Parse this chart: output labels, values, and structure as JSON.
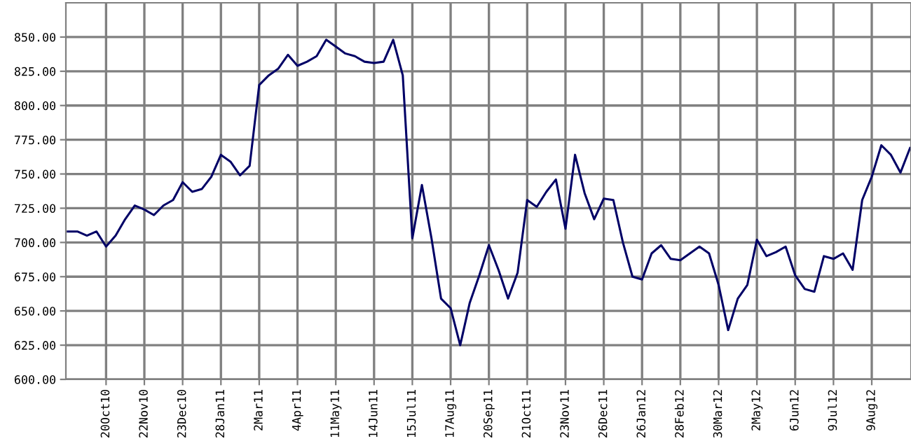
{
  "chart_data": {
    "type": "line",
    "categories": [
      null,
      null,
      null,
      null,
      "20Oct10",
      null,
      null,
      null,
      "22Nov10",
      null,
      null,
      null,
      "23Dec10",
      null,
      null,
      null,
      "28Jan11",
      null,
      null,
      null,
      "2Mar11",
      null,
      null,
      null,
      "4Apr11",
      null,
      null,
      null,
      "11May11",
      null,
      null,
      null,
      "14Jun11",
      null,
      null,
      null,
      "15Jul11",
      null,
      null,
      null,
      "17Aug11",
      null,
      null,
      null,
      "20Sep11",
      null,
      null,
      null,
      "21Oct11",
      null,
      null,
      null,
      "23Nov11",
      null,
      null,
      null,
      "26Dec11",
      null,
      null,
      null,
      "26Jan12",
      null,
      null,
      null,
      "28Feb12",
      null,
      null,
      null,
      "30Mar12",
      null,
      null,
      null,
      "2May12",
      null,
      null,
      null,
      "6Jun12",
      null,
      null,
      null,
      "9Jul12",
      null,
      null,
      null,
      "9Aug12",
      null,
      null,
      null,
      null
    ],
    "series": [
      {
        "color": "#000066",
        "values": [
          708,
          708,
          705,
          708,
          697,
          705,
          717,
          727,
          724,
          720,
          727,
          731,
          744,
          737,
          739,
          748,
          764,
          759,
          749,
          756,
          815,
          822,
          827,
          837,
          829,
          832,
          836,
          848,
          843,
          838,
          836,
          832,
          831,
          832,
          848,
          822,
          703,
          742,
          703,
          659,
          652,
          625,
          656,
          676,
          698,
          680,
          659,
          678,
          731,
          726,
          737,
          746,
          710,
          764,
          736,
          717,
          732,
          731,
          700,
          675,
          673,
          692,
          698,
          688,
          687,
          692,
          697,
          692,
          669,
          636,
          659,
          669,
          702,
          690,
          693,
          697,
          676,
          666,
          664,
          690,
          688,
          692,
          680,
          731,
          748,
          771,
          764,
          751,
          769
        ]
      }
    ],
    "ylim": [
      600,
      875
    ],
    "yticks": [
      {
        "value": 600,
        "label": "600.00"
      },
      {
        "value": 625,
        "label": "625.00"
      },
      {
        "value": 650,
        "label": "650.00"
      },
      {
        "value": 675,
        "label": "675.00"
      },
      {
        "value": 700,
        "label": "700.00"
      },
      {
        "value": 725,
        "label": "725.00"
      },
      {
        "value": 750,
        "label": "750.00"
      },
      {
        "value": 775,
        "label": "775.00"
      },
      {
        "value": 800,
        "label": "800.00"
      },
      {
        "value": 825,
        "label": "825.00"
      },
      {
        "value": 850,
        "label": "850.00"
      }
    ],
    "grid": true,
    "marker": "none",
    "line_style": "solid"
  }
}
